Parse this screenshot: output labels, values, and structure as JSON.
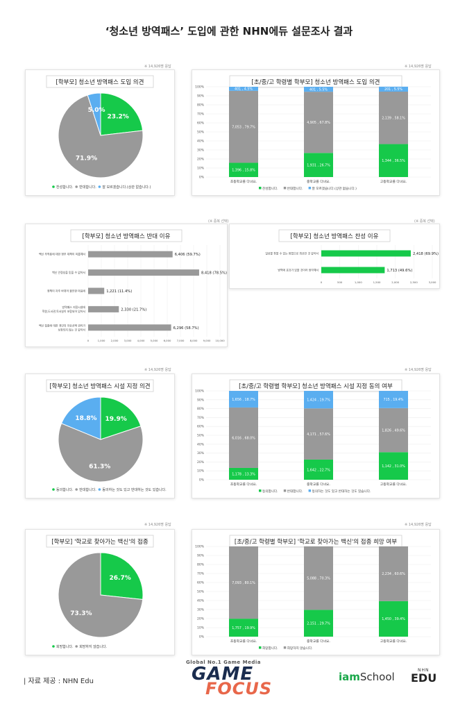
{
  "page": {
    "title": "‘청소년 방역패스’ 도입에 관한 NHN에듀 설문조사 결과",
    "source": "| 자료 제공 : NHN Edu",
    "logo_small": "Global No.1 Game Media",
    "logo_game": "GAME",
    "logo_focus": "FOCUS",
    "logo_iam": "iam",
    "logo_school": "School",
    "logo_nhn": "NHN",
    "logo_edu": "EDU"
  },
  "colors": {
    "green": "#16c94a",
    "gray": "#999999",
    "blue": "#5aaef0"
  },
  "chart_data": [
    {
      "id": "pie1",
      "type": "pie",
      "title": "[학부모] 청소년 방역패스 도입 의견",
      "note": "※ 14,926명 응답",
      "slices": [
        {
          "label": "찬성합니다.",
          "value": 23.2,
          "text": "23.2%",
          "color": "#16c94a"
        },
        {
          "label": "반대합니다.",
          "value": 71.9,
          "text": "71.9%",
          "color": "#999999"
        },
        {
          "label": "잘 모르겠습니다.(상관 없습니다.)",
          "value": 5.0,
          "text": "5.0%",
          "color": "#5aaef0"
        }
      ]
    },
    {
      "id": "bar1",
      "type": "bar",
      "title": "[초/중/고 학령별 학부모] 청소년 방역패스 도입 의견",
      "note": "※ 14,926명 응답",
      "yticks": [
        "0%",
        "10%",
        "20%",
        "30%",
        "40%",
        "50%",
        "60%",
        "70%",
        "80%",
        "90%",
        "100%"
      ],
      "categories": [
        "초등학교를 다녀요.",
        "중학교를 다녀요.",
        "고등학교를 다녀요."
      ],
      "series": [
        {
          "name": "찬성합니다.",
          "color": "#16c94a",
          "values": [
            15.8,
            26.7,
            36.5
          ],
          "labels": [
            "1,396 , 15.8%",
            "1,931 , 26.7%",
            "1,344 , 36.5%"
          ]
        },
        {
          "name": "반대합니다.",
          "color": "#999999",
          "values": [
            79.7,
            67.8,
            58.1
          ],
          "labels": [
            "7,053 , 79.7%",
            "4,905 , 67.8%",
            "2,139 , 58.1%"
          ]
        },
        {
          "name": "잘 모르겠습니다.(상관 없습니다.)",
          "color": "#5aaef0",
          "values": [
            4.5,
            5.5,
            5.5
          ],
          "labels": [
            "401 , 4.5%",
            "401 , 5.5%",
            "201 , 5.5%"
          ]
        }
      ]
    },
    {
      "id": "hbar1",
      "type": "bar",
      "orientation": "horizontal",
      "title": "[학부모] 청소년 방역패스 반대 이유",
      "note": "(※ 중복 선택)",
      "color": "#999999",
      "xmax": 10000,
      "xticks": [
        "0",
        "1,000",
        "2,000",
        "3,000",
        "4,000",
        "5,000",
        "6,000",
        "7,000",
        "8,000",
        "9,000",
        "10,000"
      ],
      "categories": [
        [
          "백신 부작용에 대한 정부 대책이 미흡해서"
        ],
        [
          "백신 안정성을 믿을 수 없어서"
        ],
        [
          "정책이 자주 바뀌어 불안한 마음에"
        ],
        [
          "방역패스 지정시설에",
          "학원,도서관,독서실이 포함되어 있어서"
        ],
        [
          "백신 접종에 대한 개인의 자유선택 권리가",
          "보장되지 않는 것 같아서"
        ]
      ],
      "values": [
        6406,
        8418,
        1221,
        2330,
        6296
      ],
      "labels": [
        "6,406 (59.7%)",
        "8,418 (78.5%)",
        "1,221 (11.4%)",
        "2,330 (21.7%)",
        "6,296 (58.7%)"
      ]
    },
    {
      "id": "hbar2",
      "type": "bar",
      "orientation": "horizontal",
      "title": "[학부모] 청소년 방역패스 찬성 이유",
      "note": "(※ 중복 선택)",
      "color": "#16c94a",
      "xmax": 3000,
      "xticks": [
        "0",
        "500",
        "1,000",
        "1,500",
        "2,000",
        "2,500",
        "3,000"
      ],
      "categories": [
        [
          "일상을 찾을 수 있는 방법으로 최선인 것 같아서"
        ],
        [
          "방역에 효과가 있을 것이라 생각해서"
        ]
      ],
      "values": [
        2418,
        1713
      ],
      "labels": [
        "2,418 (69.9%)",
        "1,713 (49.6%)"
      ]
    },
    {
      "id": "pie2",
      "type": "pie",
      "title": "[학부모] 청소년 방역패스 시설 지정 의견",
      "note": "※ 14,926명 응답",
      "slices": [
        {
          "label": "동의합니다.",
          "value": 19.9,
          "text": "19.9%",
          "color": "#16c94a"
        },
        {
          "label": "반대합니다.",
          "value": 61.3,
          "text": "61.3%",
          "color": "#999999"
        },
        {
          "label": "동의하는 것도 있고 반대하는 것도 있습니다.",
          "value": 18.8,
          "text": "18.8%",
          "color": "#5aaef0"
        }
      ]
    },
    {
      "id": "bar2",
      "type": "bar",
      "title": "[초/중/고 학령별 학부모] 청소년 방역패스 시설 지정 동의 여부",
      "note": "※ 14,926명 응답",
      "yticks": [
        "0%",
        "10%",
        "20%",
        "30%",
        "40%",
        "50%",
        "60%",
        "70%",
        "80%",
        "90%",
        "100%"
      ],
      "categories": [
        "초등학교를 다녀요.",
        "중학교를 다녀요.",
        "고등학교를 다녀요."
      ],
      "series": [
        {
          "name": "동의합니다.",
          "color": "#16c94a",
          "values": [
            13.3,
            22.7,
            31.0
          ],
          "labels": [
            "1,178 , 13.3%",
            "1,642 , 22.7%",
            "1,142 , 31.0%"
          ]
        },
        {
          "name": "반대합니다.",
          "color": "#999999",
          "values": [
            68.0,
            57.6,
            49.6
          ],
          "labels": [
            "6,016 , 68.0%",
            "4,171 , 57.6%",
            "1,826 , 49.6%"
          ]
        },
        {
          "name": "동의하는 것도 있고 반대하는 것도 있습니다.",
          "color": "#5aaef0",
          "values": [
            18.7,
            19.7,
            19.4
          ],
          "labels": [
            "1,656 , 18.7%",
            "1,424 , 19.7%",
            "715 , 19.4%"
          ]
        }
      ]
    },
    {
      "id": "pie3",
      "type": "pie",
      "title": "[학부모] '학교로 찾아가는 백신'의 접종",
      "note": "※ 14,926명 응답",
      "slices": [
        {
          "label": "희망합니다.",
          "value": 26.7,
          "text": "26.7%",
          "color": "#16c94a"
        },
        {
          "label": "희망하지 않습니다.",
          "value": 73.3,
          "text": "73.3%",
          "color": "#999999"
        }
      ]
    },
    {
      "id": "bar3",
      "type": "bar",
      "title": "[초/중/고 학령별 학부모] '학교로 찾아가는 백신'의 접종 희망 여부",
      "note": "※ 14,926명 응답",
      "yticks": [
        "0%",
        "10%",
        "20%",
        "30%",
        "40%",
        "50%",
        "60%",
        "70%",
        "80%",
        "90%",
        "100%"
      ],
      "categories": [
        "초등학교를 다녀요.",
        "중학교를 다녀요.",
        "고등학교를 다녀요."
      ],
      "series": [
        {
          "name": "희망합니다.",
          "color": "#16c94a",
          "values": [
            19.9,
            29.7,
            39.4
          ],
          "labels": [
            "1,757 , 19.9%",
            "2,151 , 29.7%",
            "1,450 , 39.4%"
          ]
        },
        {
          "name": "희망하지 않습니다.",
          "color": "#999999",
          "values": [
            80.1,
            70.3,
            60.6
          ],
          "labels": [
            "7,093 , 80.1%",
            "5,088 , 70.3%",
            "2,234 , 60.6%"
          ]
        }
      ]
    }
  ]
}
